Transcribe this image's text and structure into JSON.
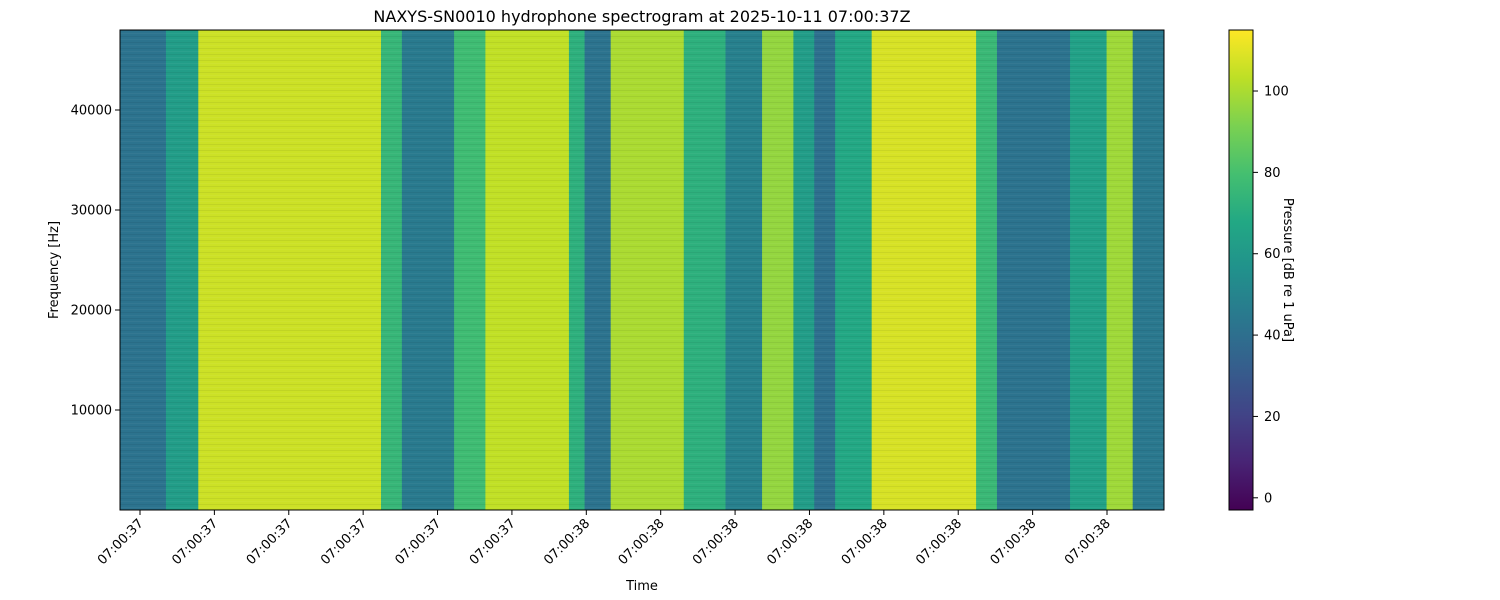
{
  "chart_data": {
    "type": "heatmap",
    "title": "NAXYS-SN0010 hydrophone spectrogram at 2025-10-11 07:00:37Z",
    "xlabel": "Time",
    "ylabel": "Frequency [Hz]",
    "colorbar_label": "Pressure [dB re 1 uPa]",
    "colormap": "viridis",
    "grid": false,
    "x_tick_labels": [
      "07:00:37",
      "07:00:37",
      "07:00:37",
      "07:00:37",
      "07:00:37",
      "07:00:37",
      "07:00:38",
      "07:00:38",
      "07:00:38",
      "07:00:38",
      "07:00:38",
      "07:00:38",
      "07:00:38",
      "07:00:38"
    ],
    "y_ticks": [
      10000,
      20000,
      30000,
      40000
    ],
    "y_tick_labels": [
      "10000",
      "20000",
      "30000",
      "40000"
    ],
    "ylim": [
      0,
      48000
    ],
    "colorbar_ticks": [
      0,
      20,
      40,
      60,
      80,
      100
    ],
    "colorbar_tick_labels": [
      "0",
      "20",
      "40",
      "60",
      "80",
      "100"
    ],
    "color_range": [
      -3,
      115
    ],
    "time_columns": [
      {
        "start": 0.0,
        "end": 0.044,
        "level": 42
      },
      {
        "start": 0.044,
        "end": 0.075,
        "level": 62
      },
      {
        "start": 0.075,
        "end": 0.25,
        "level": 106
      },
      {
        "start": 0.25,
        "end": 0.27,
        "level": 75
      },
      {
        "start": 0.27,
        "end": 0.32,
        "level": 45
      },
      {
        "start": 0.32,
        "end": 0.35,
        "level": 78
      },
      {
        "start": 0.35,
        "end": 0.43,
        "level": 104
      },
      {
        "start": 0.43,
        "end": 0.445,
        "level": 72
      },
      {
        "start": 0.445,
        "end": 0.47,
        "level": 42
      },
      {
        "start": 0.47,
        "end": 0.54,
        "level": 100
      },
      {
        "start": 0.54,
        "end": 0.58,
        "level": 72
      },
      {
        "start": 0.58,
        "end": 0.615,
        "level": 48
      },
      {
        "start": 0.615,
        "end": 0.645,
        "level": 96
      },
      {
        "start": 0.645,
        "end": 0.665,
        "level": 62
      },
      {
        "start": 0.665,
        "end": 0.685,
        "level": 40
      },
      {
        "start": 0.685,
        "end": 0.72,
        "level": 68
      },
      {
        "start": 0.72,
        "end": 0.82,
        "level": 108
      },
      {
        "start": 0.82,
        "end": 0.84,
        "level": 76
      },
      {
        "start": 0.84,
        "end": 0.91,
        "level": 42
      },
      {
        "start": 0.91,
        "end": 0.945,
        "level": 64
      },
      {
        "start": 0.945,
        "end": 0.97,
        "level": 98
      },
      {
        "start": 0.97,
        "end": 1.0,
        "level": 44
      }
    ]
  }
}
